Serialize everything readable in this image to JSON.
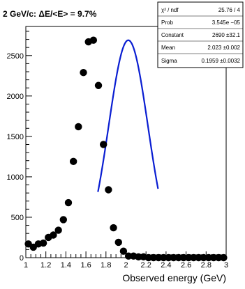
{
  "chart_data": {
    "type": "scatter",
    "title": "2 GeV/c: ΔE/<E> = 9.7%",
    "xlabel": "Observed energy (GeV)",
    "ylabel": "",
    "xlim": [
      1,
      3
    ],
    "ylim": [
      0,
      2860
    ],
    "grid": false,
    "legend": "none",
    "x_ticks": [
      1,
      1.2,
      1.4,
      1.6,
      1.8,
      2,
      2.2,
      2.4,
      2.6,
      2.8,
      3
    ],
    "x_tick_labels": [
      "1",
      "1.2",
      "1.4",
      "1.6",
      "1.8",
      "2",
      "2.2",
      "2.4",
      "2.6",
      "2.8",
      "3"
    ],
    "y_ticks": [
      0,
      500,
      1000,
      1500,
      2000,
      2500
    ],
    "y_tick_labels": [
      "0",
      "500",
      "1000",
      "1500",
      "2000",
      "2500"
    ],
    "series": [
      {
        "type": "scatter",
        "color": "#000000",
        "x": [
          1.025,
          1.075,
          1.125,
          1.175,
          1.225,
          1.275,
          1.325,
          1.375,
          1.425,
          1.475,
          1.525,
          1.575,
          1.625,
          1.675,
          1.725,
          1.775,
          1.825,
          1.875,
          1.925,
          1.975,
          2.025,
          2.075,
          2.125,
          2.175,
          2.225,
          2.275,
          2.325,
          2.375,
          2.425,
          2.475,
          2.525,
          2.575,
          2.625,
          2.675,
          2.725,
          2.775,
          2.825,
          2.875,
          2.925,
          2.975
        ],
        "y": [
          170,
          130,
          170,
          180,
          250,
          280,
          340,
          470,
          680,
          1190,
          1620,
          2290,
          2670,
          2690,
          2130,
          1400,
          840,
          370,
          190,
          80,
          20,
          20,
          10,
          10,
          0,
          0,
          0,
          0,
          0,
          0,
          0,
          0,
          0,
          0,
          0,
          0,
          0,
          0,
          0,
          0
        ]
      },
      {
        "type": "line",
        "color": "#0a1ed2",
        "fit": "gaus",
        "xrange": [
          1.72,
          2.32
        ],
        "constant": 2690,
        "mean": 2.023,
        "sigma": 0.1959
      }
    ],
    "stats_box": {
      "placement": "top-right",
      "rows": [
        {
          "label": "χ² / ndf",
          "value": "25.76 / 4"
        },
        {
          "label": "Prob",
          "value": "3.545e −05"
        },
        {
          "label": "Constant",
          "value": "2690  ±32.1"
        },
        {
          "label": "Mean",
          "value": "2.023  ±0.002"
        },
        {
          "label": "Sigma",
          "value": "0.1959  ±0.0032"
        }
      ]
    }
  }
}
